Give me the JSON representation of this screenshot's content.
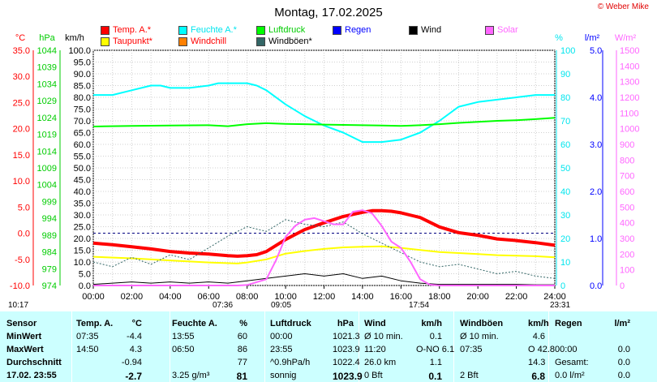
{
  "title": "Montag, 17.02.2025",
  "copyright": "© Weber Mike",
  "legend": [
    {
      "label": "Temp. A.*",
      "color": "#ff0000",
      "text_color": "#ff0000"
    },
    {
      "label": "Feuchte A.*",
      "color": "#00ffff",
      "text_color": "#00e5ee"
    },
    {
      "label": "Luftdruck",
      "color": "#00ff00",
      "text_color": "#00cc00"
    },
    {
      "label": "Regen",
      "color": "#0000ff",
      "text_color": "#0000ff"
    },
    {
      "label": "Wind",
      "color": "#000000",
      "text_color": "#000000"
    },
    {
      "label": "Solar",
      "color": "#ff66ff",
      "text_color": "#ff66ff"
    },
    {
      "label": "Taupunkt*",
      "color": "#ffff00",
      "text_color": "#ff0000"
    },
    {
      "label": "Windchill",
      "color": "#ff8000",
      "text_color": "#ff0000"
    },
    {
      "label": "Windböen*",
      "color": "#336666",
      "text_color": "#000000"
    }
  ],
  "chart_data": {
    "type": "line",
    "x_tick_labels": [
      "00:00",
      "02:00",
      "04:00",
      "06:00",
      "08:00",
      "10:00",
      "12:00",
      "14:00",
      "16:00",
      "18:00",
      "20:00",
      "22:00",
      "24:00"
    ],
    "axes": {
      "temp": {
        "label": "°C",
        "ticks": [
          "35.0",
          "30.0",
          "25.0",
          "20.0",
          "15.0",
          "10.0",
          "5.0",
          "0.0",
          "-5.0",
          "-10.0"
        ],
        "range": [
          -10,
          35
        ]
      },
      "pressure": {
        "label": "hPa",
        "ticks": [
          "1044",
          "1039",
          "1034",
          "1029",
          "1024",
          "1019",
          "1014",
          "1009",
          "1004",
          "999",
          "994",
          "989",
          "984",
          "979",
          "974"
        ],
        "range": [
          974,
          1044
        ]
      },
      "wind": {
        "label": "km/h",
        "ticks": [
          "100.0",
          "95.0",
          "90.0",
          "85.0",
          "80.0",
          "75.0",
          "70.0",
          "65.0",
          "60.0",
          "55.0",
          "50.0",
          "45.0",
          "40.0",
          "35.0",
          "30.0",
          "25.0",
          "20.0",
          "15.0",
          "10.0",
          "5.0",
          "0.0"
        ],
        "range": [
          0,
          100
        ]
      },
      "humidity": {
        "label": "%",
        "ticks": [
          "100",
          "90",
          "80",
          "70",
          "60",
          "50",
          "40",
          "30",
          "20",
          "10",
          "0"
        ],
        "range": [
          0,
          100
        ]
      },
      "rain": {
        "label": "l/m²",
        "ticks": [
          "5.0",
          "4.0",
          "3.0",
          "2.0",
          "1.0",
          "0.0"
        ],
        "range": [
          0,
          5
        ]
      },
      "solar": {
        "label": "W/m²",
        "ticks": [
          "1500",
          "1400",
          "1300",
          "1200",
          "1100",
          "1000",
          "900",
          "800",
          "700",
          "600",
          "500",
          "400",
          "300",
          "200",
          "100",
          "0"
        ],
        "range": [
          0,
          1500
        ]
      }
    },
    "series": [
      {
        "name": "Temp. A.*",
        "axis": "temp",
        "color": "#ff0000",
        "width": 4,
        "x": [
          0,
          1,
          2,
          3,
          4,
          5,
          6,
          7,
          7.5,
          8,
          8.5,
          9,
          10,
          11,
          12,
          13,
          14,
          14.5,
          15,
          15.5,
          16,
          17,
          18,
          19,
          20,
          21,
          22,
          23,
          24
        ],
        "y": [
          -1.9,
          -2.2,
          -2.6,
          -3.0,
          -3.5,
          -3.8,
          -4.0,
          -4.3,
          -4.4,
          -4.3,
          -4.1,
          -3.5,
          -1.2,
          0.7,
          2.0,
          3.2,
          4.0,
          4.3,
          4.3,
          4.2,
          3.9,
          3.0,
          1.2,
          0.1,
          -0.4,
          -1.1,
          -1.4,
          -1.8,
          -2.3
        ]
      },
      {
        "name": "Taupunkt*",
        "axis": "temp",
        "color": "#ffff00",
        "width": 2,
        "x": [
          0,
          2,
          4,
          6,
          7.5,
          8,
          9,
          10,
          11,
          12,
          13,
          14,
          15,
          16,
          17,
          18,
          19,
          20,
          21,
          22,
          23,
          24
        ],
        "y": [
          -4.5,
          -4.8,
          -5.2,
          -5.6,
          -5.8,
          -5.6,
          -5.0,
          -3.9,
          -3.4,
          -3.0,
          -2.7,
          -2.6,
          -2.5,
          -2.8,
          -3.2,
          -3.6,
          -3.8,
          -4.0,
          -4.2,
          -4.3,
          -4.4,
          -4.6
        ]
      },
      {
        "name": "Feuchte A.*",
        "axis": "humidity",
        "color": "#00ffff",
        "width": 2,
        "x": [
          0,
          1,
          2,
          3,
          3.5,
          4,
          5,
          6,
          6.5,
          7,
          8,
          8.5,
          9,
          10,
          11,
          12,
          13,
          14,
          15,
          16,
          17,
          18,
          19,
          20,
          21,
          22,
          23,
          24
        ],
        "y": [
          81,
          81,
          83,
          85,
          85,
          84,
          84,
          85,
          86,
          86,
          86,
          85,
          83,
          77,
          72,
          68,
          65,
          61,
          61,
          62,
          65,
          70,
          76,
          78,
          79,
          80,
          81,
          81
        ]
      },
      {
        "name": "Luftdruck",
        "axis": "pressure",
        "color": "#00ff00",
        "width": 2,
        "x": [
          0,
          2,
          4,
          6,
          7,
          8,
          9,
          10,
          11,
          12,
          13,
          14,
          15,
          16,
          17,
          18,
          19,
          20,
          21,
          22,
          23,
          24
        ],
        "y": [
          1021.3,
          1021.5,
          1021.6,
          1021.7,
          1021.4,
          1022.0,
          1022.3,
          1022.1,
          1022.0,
          1021.9,
          1021.8,
          1021.7,
          1021.6,
          1021.5,
          1021.7,
          1022.0,
          1022.4,
          1022.7,
          1023.0,
          1023.2,
          1023.5,
          1023.9
        ]
      },
      {
        "name": "Wind",
        "axis": "wind",
        "color": "#000000",
        "width": 1,
        "x": [
          0,
          1,
          2,
          3,
          4,
          5,
          6,
          7,
          8,
          9,
          10,
          11,
          12,
          13,
          14,
          15,
          16,
          17,
          18,
          19,
          20,
          21,
          22,
          23,
          24
        ],
        "y": [
          0.5,
          1,
          1.5,
          1,
          1.5,
          1,
          1.5,
          1,
          2,
          3,
          4,
          5,
          4,
          5,
          3,
          4,
          2,
          1,
          0.5,
          0.5,
          0.5,
          0.5,
          0.5,
          0.3,
          0.3
        ]
      },
      {
        "name": "Windböen*",
        "axis": "wind",
        "color": "#336666",
        "width": 1,
        "x": [
          0,
          1,
          2,
          3,
          4,
          5,
          6,
          7,
          8,
          9,
          10,
          11,
          12,
          13,
          14,
          15,
          16,
          17,
          18,
          19,
          20,
          21,
          22,
          23,
          24
        ],
        "y": [
          10,
          8,
          12,
          9,
          13,
          11,
          16,
          21,
          25,
          23,
          28,
          26,
          25,
          27,
          22,
          18,
          14,
          10,
          8,
          9,
          7,
          5,
          6,
          4,
          3
        ]
      },
      {
        "name": "Solar",
        "axis": "solar",
        "color": "#ff66ff",
        "width": 2,
        "x": [
          0,
          7.5,
          8,
          9,
          9.5,
          10,
          10.5,
          11,
          11.5,
          12,
          12.5,
          13,
          13.5,
          14,
          14.5,
          15,
          15.5,
          16,
          16.5,
          17,
          17.5,
          18,
          24
        ],
        "y": [
          0,
          0,
          3,
          40,
          160,
          310,
          380,
          420,
          430,
          410,
          390,
          390,
          470,
          480,
          460,
          380,
          280,
          240,
          150,
          40,
          5,
          0,
          0
        ]
      }
    ],
    "reference_lines": [
      {
        "axis": "temp",
        "value": 0,
        "color": "#000080",
        "style": "dashed"
      }
    ]
  },
  "chart_markers": [
    {
      "label": "10:17",
      "kind": "moon"
    },
    {
      "label": "07:36",
      "kind": "sun"
    },
    {
      "label": "09:05",
      "kind": "moon"
    },
    {
      "label": "17:54",
      "kind": "sun"
    },
    {
      "label": "23:31",
      "kind": "moon"
    }
  ],
  "table": {
    "headers": [
      {
        "text": "Sensor"
      },
      {
        "text": "Temp. A."
      },
      {
        "text": "°C"
      },
      {
        "text": "Feuchte A."
      },
      {
        "text": "%"
      },
      {
        "text": "Luftdruck"
      },
      {
        "text": "hPa"
      },
      {
        "text": "Wind"
      },
      {
        "text": "km/h"
      },
      {
        "text": "Windböen"
      },
      {
        "text": "km/h"
      },
      {
        "text": "Regen"
      },
      {
        "text": "l/m²"
      }
    ],
    "rows": [
      {
        "label": "MinWert",
        "cells": [
          "07:35",
          "-4.4",
          "13:55",
          "60",
          "00:00",
          "1021.3",
          "Ø 10 min.",
          "0.1",
          "Ø 10 min.",
          "4.6",
          "",
          ""
        ]
      },
      {
        "label": "MaxWert",
        "cells": [
          "14:50",
          "4.3",
          "06:50",
          "86",
          "23:55",
          "1023.9",
          "11:20",
          "O-NO 6.1",
          "07:35",
          "O 42.8",
          "00:00",
          "0.0"
        ]
      },
      {
        "label": "Durchschnitt",
        "cells": [
          "",
          "-0.94",
          "",
          "77",
          "^0.9hPa/h",
          "1022.4",
          "26.0 km",
          "1.1",
          "",
          "14.3",
          "Gesamt:",
          "0.0"
        ]
      },
      {
        "label": "17.02. 23:55",
        "cells": [
          "",
          "-2.7",
          "3.25 g/m³",
          "81",
          "sonnig",
          "1023.9",
          "0 Bft",
          "0.1",
          "2 Bft",
          "6.8",
          "0.0 l/m²",
          "0.0"
        ]
      }
    ]
  }
}
